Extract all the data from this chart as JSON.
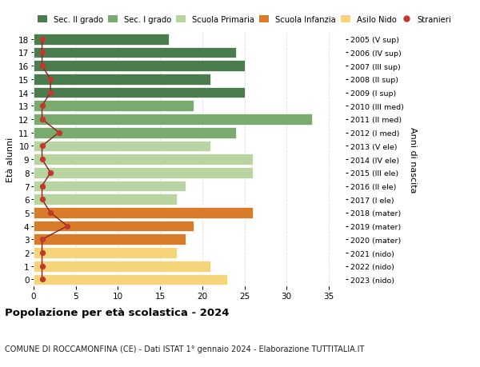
{
  "ages": [
    18,
    17,
    16,
    15,
    14,
    13,
    12,
    11,
    10,
    9,
    8,
    7,
    6,
    5,
    4,
    3,
    2,
    1,
    0
  ],
  "years": [
    "2005 (V sup)",
    "2006 (IV sup)",
    "2007 (III sup)",
    "2008 (II sup)",
    "2009 (I sup)",
    "2010 (III med)",
    "2011 (II med)",
    "2012 (I med)",
    "2013 (V ele)",
    "2014 (IV ele)",
    "2015 (III ele)",
    "2016 (II ele)",
    "2017 (I ele)",
    "2018 (mater)",
    "2019 (mater)",
    "2020 (mater)",
    "2021 (nido)",
    "2022 (nido)",
    "2023 (nido)"
  ],
  "values": [
    16,
    24,
    25,
    21,
    25,
    19,
    33,
    24,
    21,
    26,
    26,
    18,
    17,
    26,
    19,
    18,
    17,
    21,
    23
  ],
  "stranieri": [
    1,
    1,
    1,
    2,
    2,
    1,
    1,
    3,
    1,
    1,
    2,
    1,
    1,
    2,
    4,
    1,
    1,
    1,
    1
  ],
  "bar_colors": {
    "sec2": "#4a7c4e",
    "sec1": "#7aab6e",
    "primaria": "#b8d4a0",
    "infanzia": "#d97c2a",
    "nido": "#f5d47a",
    "stranieri_color": "#c0392b",
    "stranieri_line": "#8b2020"
  },
  "school_sections": {
    "sec2": [
      18,
      17,
      16,
      15,
      14
    ],
    "sec1": [
      13,
      12,
      11
    ],
    "primaria": [
      10,
      9,
      8,
      7,
      6
    ],
    "infanzia": [
      5,
      4,
      3
    ],
    "nido": [
      2,
      1,
      0
    ]
  },
  "legend_labels": [
    "Sec. II grado",
    "Sec. I grado",
    "Scuola Primaria",
    "Scuola Infanzia",
    "Asilo Nido",
    "Stranieri"
  ],
  "legend_colors": [
    "#4a7c4e",
    "#7aab6e",
    "#b8d4a0",
    "#d97c2a",
    "#f5d47a",
    "#c0392b"
  ],
  "ylabel_left": "Età alunni",
  "ylabel_right": "Anni di nascita",
  "xlim": [
    0,
    37
  ],
  "xticks": [
    0,
    5,
    10,
    15,
    20,
    25,
    30,
    35
  ],
  "title": "Popolazione per età scolastica - 2024",
  "subtitle": "COMUNE DI ROCCAMONFINA (CE) - Dati ISTAT 1° gennaio 2024 - Elaborazione TUTTITALIA.IT",
  "grid_color": "#dddddd",
  "bg_color": "#ffffff"
}
